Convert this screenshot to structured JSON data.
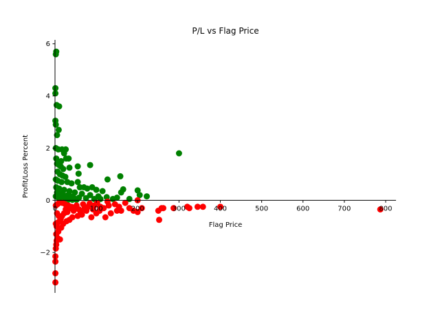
{
  "chart_data": {
    "type": "scatter",
    "title": "P/L vs Flag Price",
    "xlabel": "Flag Price",
    "ylabel": "Profit/Loss Percent",
    "xlim": [
      0,
      825
    ],
    "ylim": [
      -3.55,
      6.15
    ],
    "x_ticks": [
      0,
      100,
      200,
      300,
      400,
      500,
      600,
      700,
      800
    ],
    "y_ticks": [
      -2,
      0,
      2,
      4,
      6
    ],
    "grid": false,
    "spines": "centered at origin",
    "colors": {
      "positive": "#008000",
      "negative": "#ff0000"
    },
    "series": [
      {
        "color": "green",
        "points": [
          [
            3,
            5.7
          ],
          [
            2,
            5.6
          ],
          [
            1,
            4.3
          ],
          [
            1,
            4.1
          ],
          [
            4,
            3.65
          ],
          [
            10,
            3.6
          ],
          [
            1,
            3.05
          ],
          [
            2,
            2.9
          ],
          [
            9,
            2.7
          ],
          [
            5,
            2.5
          ],
          [
            2,
            2.0
          ],
          [
            8,
            1.95
          ],
          [
            17,
            1.95
          ],
          [
            26,
            1.95
          ],
          [
            22,
            1.8
          ],
          [
            33,
            1.6
          ],
          [
            27,
            1.6
          ],
          [
            15,
            1.5
          ],
          [
            35,
            1.25
          ],
          [
            10,
            1.35
          ],
          [
            55,
            1.3
          ],
          [
            85,
            1.35
          ],
          [
            3,
            1.6
          ],
          [
            5,
            1.4
          ],
          [
            14,
            1.3
          ],
          [
            20,
            1.2
          ],
          [
            6,
            1.1
          ],
          [
            12,
            1.0
          ],
          [
            18,
            0.95
          ],
          [
            25,
            0.9
          ],
          [
            57,
            1.02
          ],
          [
            158,
            0.92
          ],
          [
            127,
            0.8
          ],
          [
            300,
            1.8
          ],
          [
            2,
            0.8
          ],
          [
            7,
            0.75
          ],
          [
            16,
            0.7
          ],
          [
            30,
            0.7
          ],
          [
            40,
            0.65
          ],
          [
            55,
            0.7
          ],
          [
            60,
            0.5
          ],
          [
            70,
            0.5
          ],
          [
            78,
            0.45
          ],
          [
            90,
            0.5
          ],
          [
            100,
            0.4
          ],
          [
            115,
            0.35
          ],
          [
            160,
            0.3
          ],
          [
            165,
            0.42
          ],
          [
            200,
            0.38
          ],
          [
            205,
            0.2
          ],
          [
            222,
            0.15
          ],
          [
            3,
            0.5
          ],
          [
            10,
            0.45
          ],
          [
            22,
            0.4
          ],
          [
            35,
            0.35
          ],
          [
            48,
            0.3
          ],
          [
            65,
            0.25
          ],
          [
            85,
            0.2
          ],
          [
            105,
            0.15
          ],
          [
            125,
            0.12
          ],
          [
            150,
            0.1
          ],
          [
            5,
            0.3
          ],
          [
            12,
            0.25
          ],
          [
            20,
            0.2
          ],
          [
            28,
            0.18
          ],
          [
            38,
            0.15
          ],
          [
            45,
            0.1
          ],
          [
            58,
            0.1
          ],
          [
            75,
            0.08
          ],
          [
            95,
            0.05
          ],
          [
            110,
            0.05
          ],
          [
            140,
            0.05
          ],
          [
            180,
            0.05
          ],
          [
            2,
            0.15
          ],
          [
            8,
            0.1
          ],
          [
            15,
            0.08
          ],
          [
            25,
            0.05
          ],
          [
            33,
            0.03
          ],
          [
            42,
            0.02
          ],
          [
            52,
            0.02
          ]
        ]
      },
      {
        "color": "red",
        "points": [
          [
            1,
            -3.15
          ],
          [
            1,
            -2.8
          ],
          [
            1,
            -2.35
          ],
          [
            1,
            -2.15
          ],
          [
            2,
            -1.85
          ],
          [
            3,
            -1.7
          ],
          [
            4,
            -1.55
          ],
          [
            6,
            -1.45
          ],
          [
            12,
            -1.5
          ],
          [
            3,
            -1.3
          ],
          [
            8,
            -1.2
          ],
          [
            15,
            -1.05
          ],
          [
            20,
            -0.9
          ],
          [
            28,
            -0.8
          ],
          [
            35,
            -0.75
          ],
          [
            42,
            -0.65
          ],
          [
            55,
            -0.6
          ],
          [
            65,
            -0.55
          ],
          [
            88,
            -0.65
          ],
          [
            100,
            -0.5
          ],
          [
            122,
            -0.65
          ],
          [
            135,
            -0.5
          ],
          [
            150,
            -0.4
          ],
          [
            160,
            -0.4
          ],
          [
            180,
            -0.3
          ],
          [
            190,
            -0.4
          ],
          [
            200,
            -0.45
          ],
          [
            210,
            -0.3
          ],
          [
            250,
            -0.4
          ],
          [
            252,
            -0.75
          ],
          [
            258,
            -0.3
          ],
          [
            262,
            -0.3
          ],
          [
            287,
            -0.3
          ],
          [
            320,
            -0.25
          ],
          [
            325,
            -0.3
          ],
          [
            345,
            -0.25
          ],
          [
            358,
            -0.25
          ],
          [
            400,
            -0.25
          ],
          [
            787,
            -0.35
          ],
          [
            127,
            -0.05
          ],
          [
            200,
            0.0
          ],
          [
            2,
            -0.2
          ],
          [
            6,
            -0.15
          ],
          [
            10,
            -0.1
          ],
          [
            18,
            -0.1
          ],
          [
            25,
            -0.15
          ],
          [
            32,
            -0.2
          ],
          [
            40,
            -0.25
          ],
          [
            48,
            -0.3
          ],
          [
            58,
            -0.35
          ],
          [
            72,
            -0.3
          ],
          [
            80,
            -0.25
          ],
          [
            95,
            -0.2
          ],
          [
            110,
            -0.25
          ],
          [
            118,
            -0.3
          ],
          [
            130,
            -0.2
          ],
          [
            145,
            -0.15
          ],
          [
            155,
            -0.25
          ],
          [
            170,
            -0.1
          ],
          [
            5,
            -0.5
          ],
          [
            9,
            -0.6
          ],
          [
            14,
            -0.7
          ],
          [
            22,
            -0.5
          ],
          [
            30,
            -0.45
          ],
          [
            45,
            -0.4
          ],
          [
            62,
            -0.45
          ],
          [
            76,
            -0.4
          ],
          [
            92,
            -0.35
          ],
          [
            108,
            -0.4
          ],
          [
            2,
            -0.9
          ],
          [
            4,
            -1.0
          ],
          [
            7,
            -0.85
          ],
          [
            11,
            -0.8
          ],
          [
            17,
            -0.6
          ],
          [
            26,
            -0.35
          ],
          [
            37,
            -0.3
          ],
          [
            52,
            -0.2
          ],
          [
            68,
            -0.15
          ],
          [
            84,
            -0.12
          ],
          [
            102,
            -0.1
          ]
        ]
      }
    ]
  }
}
